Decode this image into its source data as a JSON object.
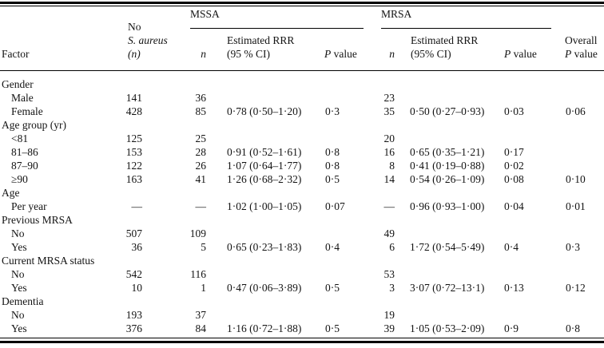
{
  "colors": {
    "text": "#131313",
    "rule": "#000000",
    "background": "#ffffff"
  },
  "table": {
    "header": {
      "factor": "Factor",
      "no_col": {
        "line1": "No",
        "line2": "S. aureus",
        "line3": "(n)"
      },
      "mssa": {
        "label": "MSSA",
        "n": "n",
        "rrr_line1": "Estimated RRR",
        "rrr_line2": "(95 % CI)",
        "p_i": "P",
        "p_rest": "value"
      },
      "mrsa": {
        "label": "MRSA",
        "n": "n",
        "rrr_line1": "Estimated RRR",
        "rrr_line2": "(95% CI)",
        "p_i": "P",
        "p_rest": "value"
      },
      "overall": {
        "line1": "Overall",
        "p_i": "P",
        "p_rest": "value"
      }
    },
    "rows": [
      {
        "section": true,
        "factor": "Gender"
      },
      {
        "factor": "Male",
        "no": "141",
        "mssa_n": "36",
        "mrsa_n": "23"
      },
      {
        "factor": "Female",
        "no": "428",
        "mssa_n": "85",
        "mssa_rrr": "0·78 (0·50–1·20)",
        "mssa_p": "0·3",
        "mrsa_n": "35",
        "mrsa_rrr": "0·50 (0·27–0·93)",
        "mrsa_p": "0·03",
        "overall_p": "0·06"
      },
      {
        "section": true,
        "factor": "Age group (yr)"
      },
      {
        "factor": "<81",
        "no": "125",
        "mssa_n": "25",
        "mrsa_n": "20"
      },
      {
        "factor": "81–86",
        "no": "153",
        "mssa_n": "28",
        "mssa_rrr": "0·91 (0·52–1·61)",
        "mssa_p": "0·8",
        "mrsa_n": "16",
        "mrsa_rrr": "0·65 (0·35–1·21)",
        "mrsa_p": "0·17"
      },
      {
        "factor": "87–90",
        "no": "122",
        "mssa_n": "26",
        "mssa_rrr": "1·07 (0·64–1·77)",
        "mssa_p": "0·8",
        "mrsa_n": "8",
        "mrsa_rrr": "0·41 (0·19–0·88)",
        "mrsa_p": "0·02"
      },
      {
        "factor": "≥90",
        "no": "163",
        "mssa_n": "41",
        "mssa_rrr": "1·26 (0·68–2·32)",
        "mssa_p": "0·5",
        "mrsa_n": "14",
        "mrsa_rrr": "0·54 (0·26–1·09)",
        "mrsa_p": "0·08",
        "overall_p": "0·10"
      },
      {
        "section": true,
        "factor": "Age"
      },
      {
        "factor": "Per year",
        "no": "—",
        "mssa_n": "—",
        "mssa_rrr": "1·02 (1·00–1·05)",
        "mssa_p": "0·07",
        "mrsa_n": "—",
        "mrsa_rrr": "0·96 (0·93–1·00)",
        "mrsa_p": "0·04",
        "overall_p": "0·01"
      },
      {
        "section": true,
        "factor": "Previous MRSA"
      },
      {
        "factor": "No",
        "no": "507",
        "mssa_n": "109",
        "mrsa_n": "49"
      },
      {
        "factor": "Yes",
        "no": "36",
        "mssa_n": "5",
        "mssa_rrr": "0·65 (0·23–1·83)",
        "mssa_p": "0·4",
        "mrsa_n": "6",
        "mrsa_rrr": "1·72 (0·54–5·49)",
        "mrsa_p": "0·4",
        "overall_p": "0·3"
      },
      {
        "section": true,
        "factor": "Current MRSA status"
      },
      {
        "factor": "No",
        "no": "542",
        "mssa_n": "116",
        "mrsa_n": "53"
      },
      {
        "factor": "Yes",
        "no": "10",
        "mssa_n": "1",
        "mssa_rrr": "0·47 (0·06–3·89)",
        "mssa_p": "0·5",
        "mrsa_n": "3",
        "mrsa_rrr": "3·07 (0·72–13·1)",
        "mrsa_p": "0·13",
        "overall_p": "0·12"
      },
      {
        "section": true,
        "factor": "Dementia"
      },
      {
        "factor": "No",
        "no": "193",
        "mssa_n": "37",
        "mrsa_n": "19"
      },
      {
        "factor": "Yes",
        "no": "376",
        "mssa_n": "84",
        "mssa_rrr": "1·16 (0·72–1·88)",
        "mssa_p": "0·5",
        "mrsa_n": "39",
        "mrsa_rrr": "1·05 (0·53–2·09)",
        "mrsa_p": "0·9",
        "overall_p": "0·8"
      }
    ]
  }
}
